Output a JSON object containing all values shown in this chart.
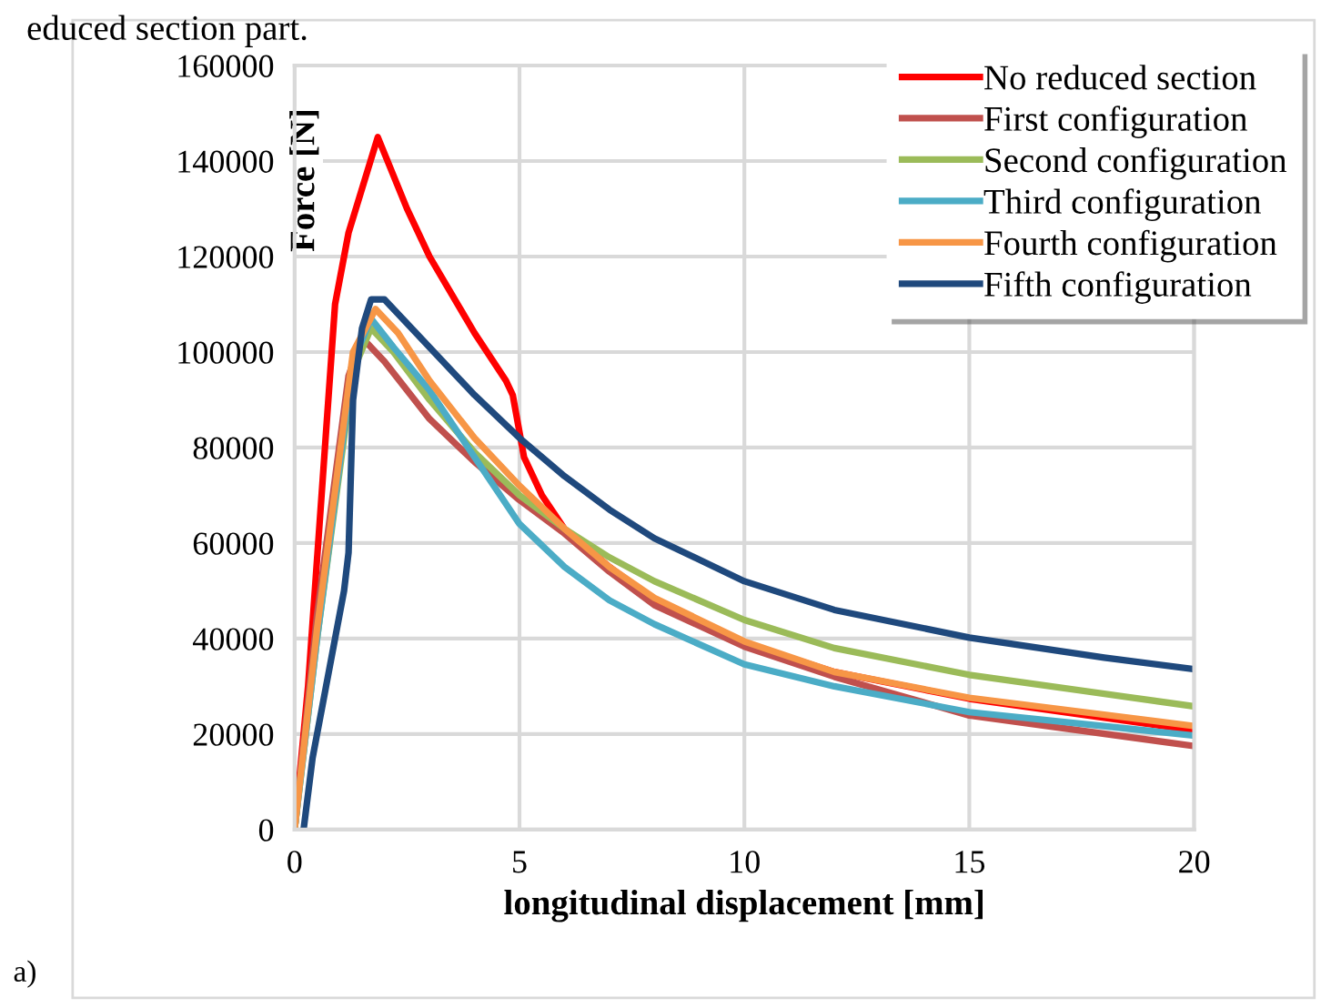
{
  "chart_data": {
    "type": "line",
    "xlabel": "longitudinal displacement [mm]",
    "ylabel": "Force [N]",
    "xlim": [
      0,
      20
    ],
    "xticks": [
      0,
      5,
      10,
      15,
      20
    ],
    "ylim": [
      0,
      160000
    ],
    "yticks": [
      0,
      20000,
      40000,
      60000,
      80000,
      100000,
      120000,
      140000,
      160000
    ],
    "grid": true,
    "legend": "top right",
    "marker": "none",
    "line_style": "solid",
    "annotations": [
      "educed section part.",
      "a)"
    ],
    "series": [
      {
        "name": "No reduced section",
        "color": "#ff0000",
        "x": [
          0,
          0.3,
          0.9,
          1.2,
          1.85,
          2.5,
          3,
          4,
          4.7,
          4.85,
          5.1,
          5.5,
          6,
          7,
          8,
          10,
          12,
          15,
          20
        ],
        "values": [
          0,
          30000,
          110000,
          125000,
          145000,
          130000,
          120000,
          104000,
          94000,
          91000,
          78000,
          70000,
          63000,
          55000,
          48000,
          39000,
          33000,
          27400,
          20800
        ]
      },
      {
        "name": "First configuration",
        "color": "#c0504d",
        "x": [
          0,
          0.5,
          1.2,
          1.5,
          2,
          3,
          4,
          5,
          6,
          7,
          8,
          10,
          12,
          15,
          20
        ],
        "values": [
          0,
          45000,
          95000,
          103000,
          98000,
          86000,
          77000,
          69000,
          62000,
          54000,
          47000,
          38300,
          32000,
          23900,
          17500
        ]
      },
      {
        "name": "Second configuration",
        "color": "#9bbb59",
        "x": [
          0,
          0.5,
          1.3,
          1.7,
          2.2,
          3,
          4,
          5,
          6,
          7,
          8,
          10,
          12,
          15,
          20
        ],
        "values": [
          0,
          40000,
          96000,
          105000,
          100000,
          90000,
          79000,
          70000,
          63000,
          57000,
          52000,
          43900,
          38000,
          32400,
          25800
        ]
      },
      {
        "name": "Third configuration",
        "color": "#4bacc6",
        "x": [
          0,
          0.5,
          1.3,
          1.7,
          2.2,
          3,
          4,
          5,
          6,
          7,
          8,
          10,
          12,
          15,
          20
        ],
        "values": [
          0,
          40000,
          98000,
          107000,
          101000,
          92000,
          78000,
          64000,
          55000,
          48000,
          43000,
          34600,
          30000,
          24600,
          19700
        ]
      },
      {
        "name": "Fourth configuration",
        "color": "#f79646",
        "x": [
          0,
          0.5,
          1.3,
          1.8,
          2.3,
          3,
          4,
          5,
          6,
          7,
          8,
          10,
          12,
          15,
          20
        ],
        "values": [
          0,
          42000,
          100000,
          109000,
          104000,
          94000,
          82000,
          72000,
          63000,
          55000,
          48500,
          39400,
          33000,
          27600,
          21700
        ]
      },
      {
        "name": "Fifth configuration",
        "color": "#1f497d",
        "x": [
          0.2,
          0.4,
          0.7,
          1.1,
          1.2,
          1.3,
          1.5,
          1.7,
          2,
          2.5,
          3,
          4,
          5,
          6,
          7,
          8,
          9,
          10,
          12,
          15,
          18,
          20
        ],
        "values": [
          0,
          15000,
          30000,
          50000,
          58000,
          90000,
          105000,
          111000,
          111000,
          106000,
          101000,
          91000,
          82000,
          74000,
          67000,
          61000,
          56500,
          52000,
          46000,
          40200,
          36000,
          33600
        ]
      }
    ]
  }
}
